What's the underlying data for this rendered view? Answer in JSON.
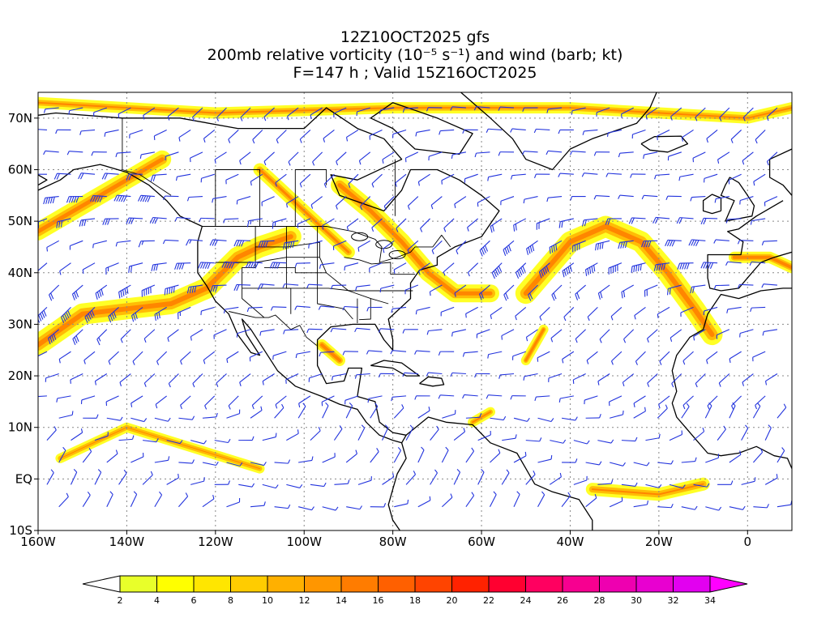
{
  "title": {
    "line1": "12Z10OCT2025 gfs",
    "line2": "200mb relative vorticity (10⁻⁵ s⁻¹) and wind (barb; kt)",
    "line3": "F=147 h ; Valid 15Z16OCT2025"
  },
  "map": {
    "lon_range": [
      -160,
      10
    ],
    "lat_range": [
      -10,
      75
    ],
    "lat_ticks": [
      {
        "value": 70,
        "label": "70N"
      },
      {
        "value": 60,
        "label": "60N"
      },
      {
        "value": 50,
        "label": "50N"
      },
      {
        "value": 40,
        "label": "40N"
      },
      {
        "value": 30,
        "label": "30N"
      },
      {
        "value": 20,
        "label": "20N"
      },
      {
        "value": 10,
        "label": "10N"
      },
      {
        "value": 0,
        "label": "EQ"
      },
      {
        "value": -10,
        "label": "10S"
      }
    ],
    "lon_ticks": [
      {
        "value": -160,
        "label": "160W"
      },
      {
        "value": -140,
        "label": "140W"
      },
      {
        "value": -120,
        "label": "120W"
      },
      {
        "value": -100,
        "label": "100W"
      },
      {
        "value": -80,
        "label": "80W"
      },
      {
        "value": -60,
        "label": "60W"
      },
      {
        "value": -40,
        "label": "40W"
      },
      {
        "value": -20,
        "label": "20W"
      },
      {
        "value": 0,
        "label": "0"
      }
    ],
    "grid": true,
    "coastline_color": "#000000",
    "barb_color": "#2233dd"
  },
  "colorbar": {
    "labels": [
      "2",
      "4",
      "6",
      "8",
      "10",
      "12",
      "14",
      "16",
      "18",
      "20",
      "22",
      "24",
      "26",
      "28",
      "30",
      "32",
      "34"
    ],
    "colors": [
      "#e8ff2a",
      "#ffff00",
      "#ffe600",
      "#ffcc00",
      "#ffb000",
      "#ff9600",
      "#ff7c00",
      "#ff6000",
      "#ff4400",
      "#ff2200",
      "#ff0030",
      "#ff0060",
      "#f70090",
      "#ee00b0",
      "#e800d0",
      "#e200f0"
    ],
    "under_color": "#ffffff",
    "over_color": "#ff00ff"
  }
}
